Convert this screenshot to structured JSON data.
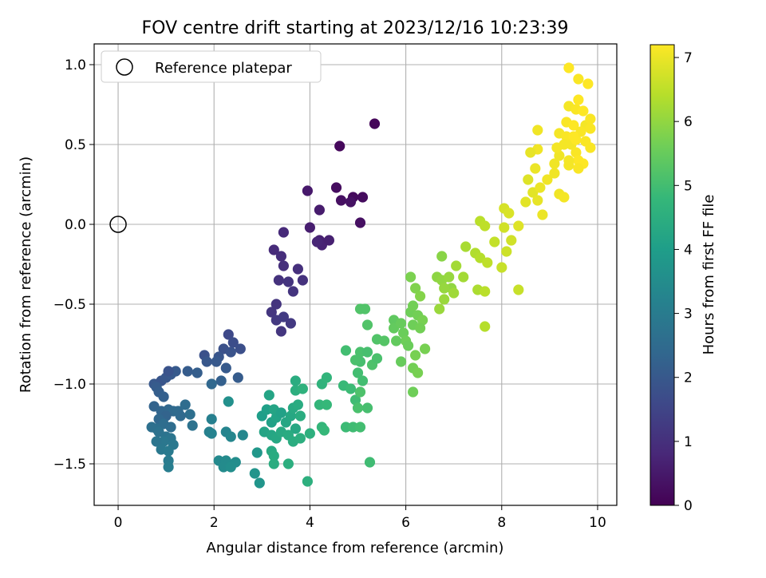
{
  "chart_data": {
    "type": "scatter",
    "title": "FOV centre drift starting at 2023/12/16 10:23:39",
    "xlabel": "Angular distance from reference (arcmin)",
    "ylabel": "Rotation from reference (arcmin)",
    "xlim": [
      -0.5,
      10.4
    ],
    "ylim": [
      -1.76,
      1.13
    ],
    "x_ticks": [
      0,
      2,
      4,
      6,
      8,
      10
    ],
    "x_tick_labels": [
      "0",
      "2",
      "4",
      "6",
      "8",
      "10"
    ],
    "y_ticks": [
      1.0,
      0.5,
      0.0,
      -0.5,
      -1.0,
      -1.5
    ],
    "y_tick_labels": [
      "1.0",
      "0.5",
      "0.0",
      "−0.5",
      "−1.0",
      "−1.5"
    ],
    "grid": true,
    "legend": {
      "position": "top-left",
      "entries": [
        "Reference platepar"
      ]
    },
    "reference_point": {
      "x": 0,
      "y": 0
    },
    "colorbar": {
      "label": "Hours from first FF file",
      "range": [
        0,
        7.2
      ],
      "ticks": [
        0,
        1,
        2,
        3,
        4,
        5,
        6,
        7
      ],
      "tick_labels": [
        "0",
        "1",
        "2",
        "3",
        "4",
        "5",
        "6",
        "7"
      ],
      "colormap": [
        "#440154",
        "#482878",
        "#3e4989",
        "#31688e",
        "#26828e",
        "#1f9e89",
        "#35b779",
        "#6ece58",
        "#b5de2b",
        "#fde725"
      ]
    },
    "points": [
      [
        5.35,
        0.63,
        0.1
      ],
      [
        4.62,
        0.49,
        0.15
      ],
      [
        4.55,
        0.23,
        0.25
      ],
      [
        4.65,
        0.15,
        0.3
      ],
      [
        4.9,
        0.17,
        0.2
      ],
      [
        5.1,
        0.17,
        0.22
      ],
      [
        4.85,
        0.14,
        0.35
      ],
      [
        5.05,
        0.01,
        0.3
      ],
      [
        3.95,
        0.21,
        0.5
      ],
      [
        4.2,
        0.09,
        0.55
      ],
      [
        4.0,
        -0.02,
        0.6
      ],
      [
        4.2,
        -0.1,
        0.65
      ],
      [
        4.25,
        -0.13,
        0.7
      ],
      [
        4.4,
        -0.1,
        0.65
      ],
      [
        4.15,
        -0.11,
        0.75
      ],
      [
        3.45,
        -0.05,
        0.85
      ],
      [
        3.25,
        -0.16,
        0.9
      ],
      [
        3.4,
        -0.2,
        0.95
      ],
      [
        3.45,
        -0.26,
        1.0
      ],
      [
        3.35,
        -0.35,
        1.05
      ],
      [
        3.55,
        -0.36,
        1.1
      ],
      [
        3.75,
        -0.28,
        1.0
      ],
      [
        3.85,
        -0.35,
        1.05
      ],
      [
        3.65,
        -0.42,
        1.1
      ],
      [
        3.2,
        -0.55,
        1.15
      ],
      [
        3.3,
        -0.6,
        1.2
      ],
      [
        3.45,
        -0.58,
        1.25
      ],
      [
        3.4,
        -0.67,
        1.15
      ],
      [
        3.6,
        -0.62,
        1.2
      ],
      [
        3.3,
        -0.5,
        1.1
      ],
      [
        2.3,
        -0.69,
        1.6
      ],
      [
        2.4,
        -0.74,
        1.7
      ],
      [
        2.2,
        -0.78,
        1.8
      ],
      [
        2.55,
        -0.78,
        1.75
      ],
      [
        2.35,
        -0.8,
        1.85
      ],
      [
        2.1,
        -0.83,
        1.9
      ],
      [
        1.8,
        -0.82,
        1.8
      ],
      [
        1.85,
        -0.86,
        1.95
      ],
      [
        2.05,
        -0.86,
        2.0
      ],
      [
        2.25,
        -0.9,
        2.05
      ],
      [
        2.5,
        -0.96,
        2.1
      ],
      [
        2.15,
        -0.98,
        2.2
      ],
      [
        1.95,
        -1.0,
        2.4
      ],
      [
        1.45,
        -0.92,
        2.1
      ],
      [
        1.65,
        -0.93,
        2.15
      ],
      [
        0.75,
        -1.0,
        2.0
      ],
      [
        0.9,
        -0.98,
        1.9
      ],
      [
        1.0,
        -0.96,
        1.95
      ],
      [
        1.1,
        -0.94,
        2.0
      ],
      [
        1.2,
        -0.92,
        2.05
      ],
      [
        1.05,
        -0.92,
        1.85
      ],
      [
        0.8,
        -1.02,
        2.1
      ],
      [
        0.85,
        -1.05,
        2.15
      ],
      [
        0.95,
        -1.08,
        2.2
      ],
      [
        0.75,
        -1.14,
        2.3
      ],
      [
        0.9,
        -1.17,
        2.35
      ],
      [
        1.05,
        -1.16,
        2.4
      ],
      [
        1.15,
        -1.17,
        2.45
      ],
      [
        1.25,
        -1.17,
        2.5
      ],
      [
        1.4,
        -1.13,
        2.55
      ],
      [
        1.5,
        -1.19,
        2.6
      ],
      [
        1.0,
        -1.2,
        2.3
      ],
      [
        0.85,
        -1.22,
        2.4
      ],
      [
        1.3,
        -1.2,
        2.45
      ],
      [
        1.55,
        -1.26,
        2.7
      ],
      [
        0.95,
        -1.25,
        2.55
      ],
      [
        0.8,
        -1.28,
        2.6
      ],
      [
        1.1,
        -1.27,
        2.55
      ],
      [
        0.7,
        -1.27,
        2.65
      ],
      [
        0.85,
        -1.3,
        2.7
      ],
      [
        1.0,
        -1.33,
        2.75
      ],
      [
        1.1,
        -1.34,
        2.8
      ],
      [
        0.95,
        -1.36,
        2.85
      ],
      [
        0.8,
        -1.36,
        2.8
      ],
      [
        1.15,
        -1.38,
        2.9
      ],
      [
        0.9,
        -1.41,
        2.9
      ],
      [
        1.05,
        -1.42,
        2.95
      ],
      [
        1.05,
        -1.48,
        3.0
      ],
      [
        1.05,
        -1.52,
        3.05
      ],
      [
        1.95,
        -1.22,
        3.1
      ],
      [
        1.9,
        -1.3,
        3.15
      ],
      [
        1.95,
        -1.31,
        3.2
      ],
      [
        2.25,
        -1.3,
        3.25
      ],
      [
        2.35,
        -1.33,
        3.3
      ],
      [
        2.6,
        -1.32,
        3.35
      ],
      [
        2.1,
        -1.48,
        3.4
      ],
      [
        2.25,
        -1.48,
        3.45
      ],
      [
        2.45,
        -1.49,
        3.5
      ],
      [
        2.2,
        -1.52,
        3.45
      ],
      [
        2.35,
        -1.52,
        3.55
      ],
      [
        2.3,
        -1.11,
        3.6
      ],
      [
        2.85,
        -1.56,
        3.7
      ],
      [
        2.95,
        -1.62,
        3.75
      ],
      [
        2.9,
        -1.43,
        3.8
      ],
      [
        3.0,
        -1.2,
        4.0
      ],
      [
        3.1,
        -1.16,
        4.05
      ],
      [
        3.2,
        -1.24,
        4.1
      ],
      [
        3.3,
        -1.21,
        4.15
      ],
      [
        3.25,
        -1.16,
        4.2
      ],
      [
        3.4,
        -1.18,
        4.1
      ],
      [
        3.5,
        -1.24,
        4.25
      ],
      [
        3.6,
        -1.2,
        4.3
      ],
      [
        3.65,
        -1.15,
        4.35
      ],
      [
        3.75,
        -1.13,
        4.4
      ],
      [
        3.8,
        -1.2,
        4.45
      ],
      [
        3.7,
        -1.28,
        4.3
      ],
      [
        3.05,
        -1.3,
        4.2
      ],
      [
        3.2,
        -1.32,
        4.25
      ],
      [
        3.3,
        -1.34,
        4.3
      ],
      [
        3.4,
        -1.3,
        4.35
      ],
      [
        3.55,
        -1.32,
        4.4
      ],
      [
        3.65,
        -1.36,
        4.45
      ],
      [
        3.8,
        -1.34,
        4.5
      ],
      [
        3.2,
        -1.42,
        4.35
      ],
      [
        3.25,
        -1.45,
        4.4
      ],
      [
        3.25,
        -1.5,
        4.45
      ],
      [
        3.55,
        -1.5,
        4.5
      ],
      [
        3.15,
        -1.07,
        4.2
      ],
      [
        3.7,
        -0.98,
        4.45
      ],
      [
        3.7,
        -1.04,
        4.5
      ],
      [
        4.0,
        -1.31,
        4.55
      ],
      [
        3.95,
        -1.61,
        4.55
      ],
      [
        3.85,
        -1.03,
        4.6
      ],
      [
        4.25,
        -1.0,
        4.65
      ],
      [
        4.35,
        -0.96,
        4.7
      ],
      [
        4.2,
        -1.13,
        4.75
      ],
      [
        4.35,
        -1.13,
        4.8
      ],
      [
        4.25,
        -1.27,
        4.75
      ],
      [
        4.3,
        -1.29,
        4.8
      ],
      [
        4.7,
        -1.01,
        4.85
      ],
      [
        4.85,
        -1.03,
        4.9
      ],
      [
        4.95,
        -1.1,
        4.95
      ],
      [
        4.75,
        -1.27,
        4.9
      ],
      [
        4.9,
        -1.27,
        4.95
      ],
      [
        5.05,
        -1.27,
        5.0
      ],
      [
        5.0,
        -0.93,
        5.0
      ],
      [
        5.05,
        -0.86,
        5.05
      ],
      [
        5.05,
        -0.8,
        5.1
      ],
      [
        5.2,
        -0.8,
        5.05
      ],
      [
        5.1,
        -0.98,
        5.0
      ],
      [
        5.2,
        -1.15,
        5.05
      ],
      [
        5.0,
        -1.15,
        5.1
      ],
      [
        5.05,
        -1.05,
        5.15
      ],
      [
        4.95,
        -0.85,
        5.1
      ],
      [
        5.3,
        -0.88,
        5.15
      ],
      [
        5.4,
        -0.84,
        5.1
      ],
      [
        5.4,
        -0.72,
        5.2
      ],
      [
        5.55,
        -0.73,
        5.25
      ],
      [
        5.2,
        -0.63,
        5.2
      ],
      [
        5.05,
        -0.53,
        5.2
      ],
      [
        5.15,
        -0.53,
        5.2
      ],
      [
        4.75,
        -0.79,
        5.0
      ],
      [
        5.25,
        -1.49,
        4.95
      ],
      [
        5.75,
        -0.6,
        5.4
      ],
      [
        5.75,
        -0.65,
        5.45
      ],
      [
        5.9,
        -0.62,
        5.5
      ],
      [
        5.95,
        -0.68,
        5.55
      ],
      [
        6.0,
        -0.73,
        5.6
      ],
      [
        6.05,
        -0.76,
        5.55
      ],
      [
        5.8,
        -0.73,
        5.45
      ],
      [
        5.9,
        -0.86,
        5.5
      ],
      [
        6.1,
        -0.55,
        5.6
      ],
      [
        6.15,
        -0.51,
        5.65
      ],
      [
        6.25,
        -0.57,
        5.65
      ],
      [
        6.35,
        -0.6,
        5.7
      ],
      [
        6.15,
        -0.63,
        5.6
      ],
      [
        6.3,
        -0.65,
        5.65
      ],
      [
        6.4,
        -0.78,
        5.7
      ],
      [
        6.2,
        -0.82,
        5.7
      ],
      [
        6.15,
        -0.9,
        5.65
      ],
      [
        6.25,
        -0.93,
        5.7
      ],
      [
        6.15,
        -1.05,
        5.6
      ],
      [
        6.1,
        -0.33,
        5.75
      ],
      [
        6.2,
        -0.4,
        5.8
      ],
      [
        6.3,
        -0.45,
        5.85
      ],
      [
        6.75,
        -0.2,
        5.9
      ],
      [
        6.65,
        -0.33,
        5.95
      ],
      [
        6.75,
        -0.35,
        6.0
      ],
      [
        6.9,
        -0.33,
        6.05
      ],
      [
        6.95,
        -0.4,
        6.0
      ],
      [
        6.8,
        -0.4,
        6.05
      ],
      [
        6.8,
        -0.47,
        6.1
      ],
      [
        6.7,
        -0.53,
        6.1
      ],
      [
        7.0,
        -0.43,
        6.15
      ],
      [
        7.05,
        -0.26,
        6.2
      ],
      [
        7.25,
        -0.14,
        6.25
      ],
      [
        7.2,
        -0.33,
        6.2
      ],
      [
        7.5,
        -0.41,
        6.3
      ],
      [
        7.45,
        -0.18,
        6.35
      ],
      [
        7.55,
        -0.21,
        6.4
      ],
      [
        7.55,
        0.02,
        6.45
      ],
      [
        7.65,
        -0.01,
        6.5
      ],
      [
        7.85,
        -0.11,
        6.55
      ],
      [
        7.7,
        -0.24,
        6.5
      ],
      [
        7.65,
        -0.42,
        6.45
      ],
      [
        7.65,
        -0.64,
        6.4
      ],
      [
        8.0,
        -0.27,
        6.6
      ],
      [
        8.1,
        -0.17,
        6.65
      ],
      [
        8.2,
        -0.1,
        6.7
      ],
      [
        8.35,
        -0.41,
        6.6
      ],
      [
        8.05,
        -0.02,
        6.7
      ],
      [
        8.05,
        0.1,
        6.75
      ],
      [
        8.15,
        0.07,
        6.8
      ],
      [
        8.35,
        -0.01,
        6.85
      ],
      [
        8.5,
        0.14,
        6.9
      ],
      [
        8.55,
        0.28,
        6.85
      ],
      [
        8.65,
        0.2,
        6.9
      ],
      [
        8.75,
        0.15,
        6.95
      ],
      [
        8.8,
        0.23,
        7.0
      ],
      [
        8.85,
        0.06,
        7.0
      ],
      [
        8.95,
        0.28,
        7.05
      ],
      [
        9.1,
        0.32,
        7.05
      ],
      [
        8.7,
        0.35,
        7.0
      ],
      [
        8.75,
        0.47,
        7.05
      ],
      [
        8.6,
        0.45,
        6.95
      ],
      [
        8.75,
        0.59,
        7.05
      ],
      [
        9.2,
        0.57,
        7.1
      ],
      [
        9.35,
        0.55,
        7.15
      ],
      [
        9.45,
        0.5,
        7.1
      ],
      [
        9.55,
        0.45,
        7.15
      ],
      [
        9.6,
        0.4,
        7.2
      ],
      [
        9.7,
        0.38,
        7.2
      ],
      [
        9.85,
        0.48,
        7.15
      ],
      [
        9.4,
        0.37,
        7.1
      ],
      [
        9.55,
        0.53,
        7.2
      ],
      [
        9.75,
        0.52,
        7.15
      ],
      [
        9.35,
        0.64,
        7.15
      ],
      [
        9.5,
        0.62,
        7.2
      ],
      [
        9.75,
        0.62,
        7.1
      ],
      [
        9.85,
        0.66,
        7.15
      ],
      [
        9.4,
        0.74,
        7.1
      ],
      [
        9.55,
        0.72,
        7.15
      ],
      [
        9.7,
        0.71,
        7.2
      ],
      [
        9.6,
        0.78,
        7.2
      ],
      [
        9.4,
        0.98,
        7.2
      ],
      [
        9.6,
        0.91,
        7.15
      ],
      [
        9.8,
        0.88,
        7.2
      ],
      [
        9.2,
        0.19,
        7.05
      ],
      [
        9.3,
        0.17,
        7.1
      ],
      [
        9.4,
        0.4,
        7.1
      ],
      [
        9.2,
        0.43,
        7.05
      ],
      [
        9.65,
        0.58,
        7.15
      ],
      [
        9.85,
        0.6,
        7.15
      ],
      [
        9.5,
        0.55,
        7.2
      ],
      [
        9.3,
        0.5,
        7.1
      ],
      [
        9.6,
        0.35,
        7.15
      ],
      [
        9.1,
        0.38,
        7.05
      ],
      [
        9.15,
        0.48,
        7.1
      ]
    ]
  }
}
